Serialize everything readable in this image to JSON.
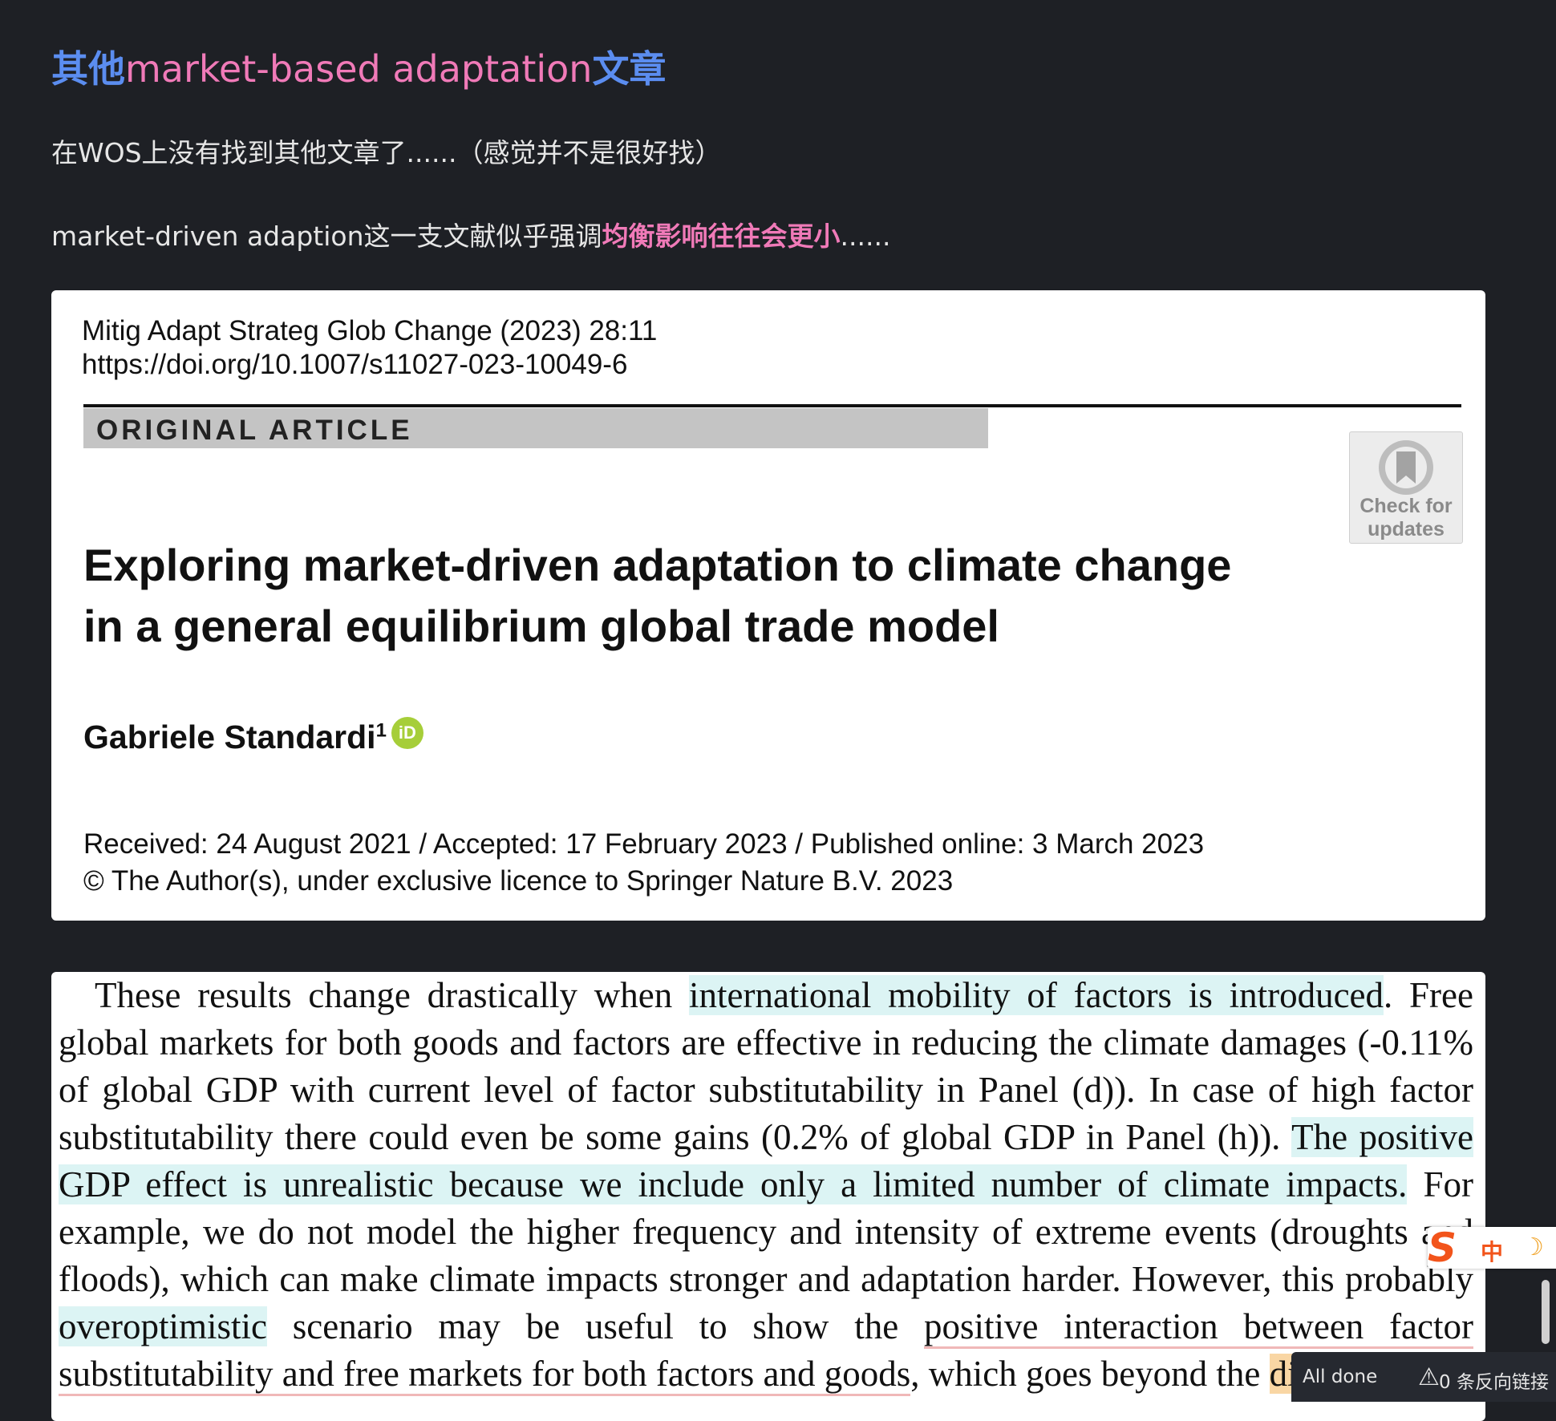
{
  "heading": {
    "prefix": "其他",
    "middle": "market-based adaptation",
    "suffix": "文章"
  },
  "paragraph1": "在WOS上没有找到其他文章了......（感觉并不是很好找）",
  "paragraph2": {
    "text": "market-driven adaption这一支文献似乎强调",
    "highlight": "均衡影响往往会更小",
    "ellipsis": "......"
  },
  "article": {
    "journal_line1": "Mitig Adapt Strateg Glob Change (2023) 28:11",
    "journal_line2": "https://doi.org/10.1007/s11027-023-10049-6",
    "type": "ORIGINAL ARTICLE",
    "crossmark_line1": "Check for",
    "crossmark_line2": "updates",
    "title_line1": "Exploring market-driven adaptation to climate change",
    "title_line2": "in a general equilibrium global trade model",
    "author": "Gabriele Standardi",
    "author_sup": "1",
    "orcid": "iD",
    "dates": "Received: 24 August 2021 / Accepted: 17 February 2023 / Published online: 3 March 2023",
    "copyright": "© The Author(s), under exclusive licence to Springer Nature B.V. 2023"
  },
  "excerpt": {
    "s1": " These results change drastically when ",
    "s2": "international mobility of factors is introduced",
    "s3": ". Free global markets for both goods and factors are effective in reducing the climate damages (-0.11% of global GDP with current level of factor substitutability in Panel (d)). In case of high factor substitutability there could even be some gains (0.2% of global GDP in Panel (h)). ",
    "s4": "The positive GDP effect is unrealistic because we include only a limited number of climate impacts.",
    "s5": " For example, we do not model the higher frequency and intensity of extreme events (droughts and floods), which can make climate impacts stronger and adaptation harder. However, this probably ",
    "s6": "overoptimistic",
    "s7": " scenario may be useful to show the ",
    "s8": "positive interaction between factor substitutability and free markets for both factors and goods",
    "s9": ", which goes beyond the ",
    "s10": "di"
  },
  "ime": {
    "logo": "S",
    "lang": "中",
    "moon": "☽"
  },
  "status_bar": {
    "done": "All done",
    "warning_icon": "⚠",
    "backlinks": "0 条反向链接"
  }
}
